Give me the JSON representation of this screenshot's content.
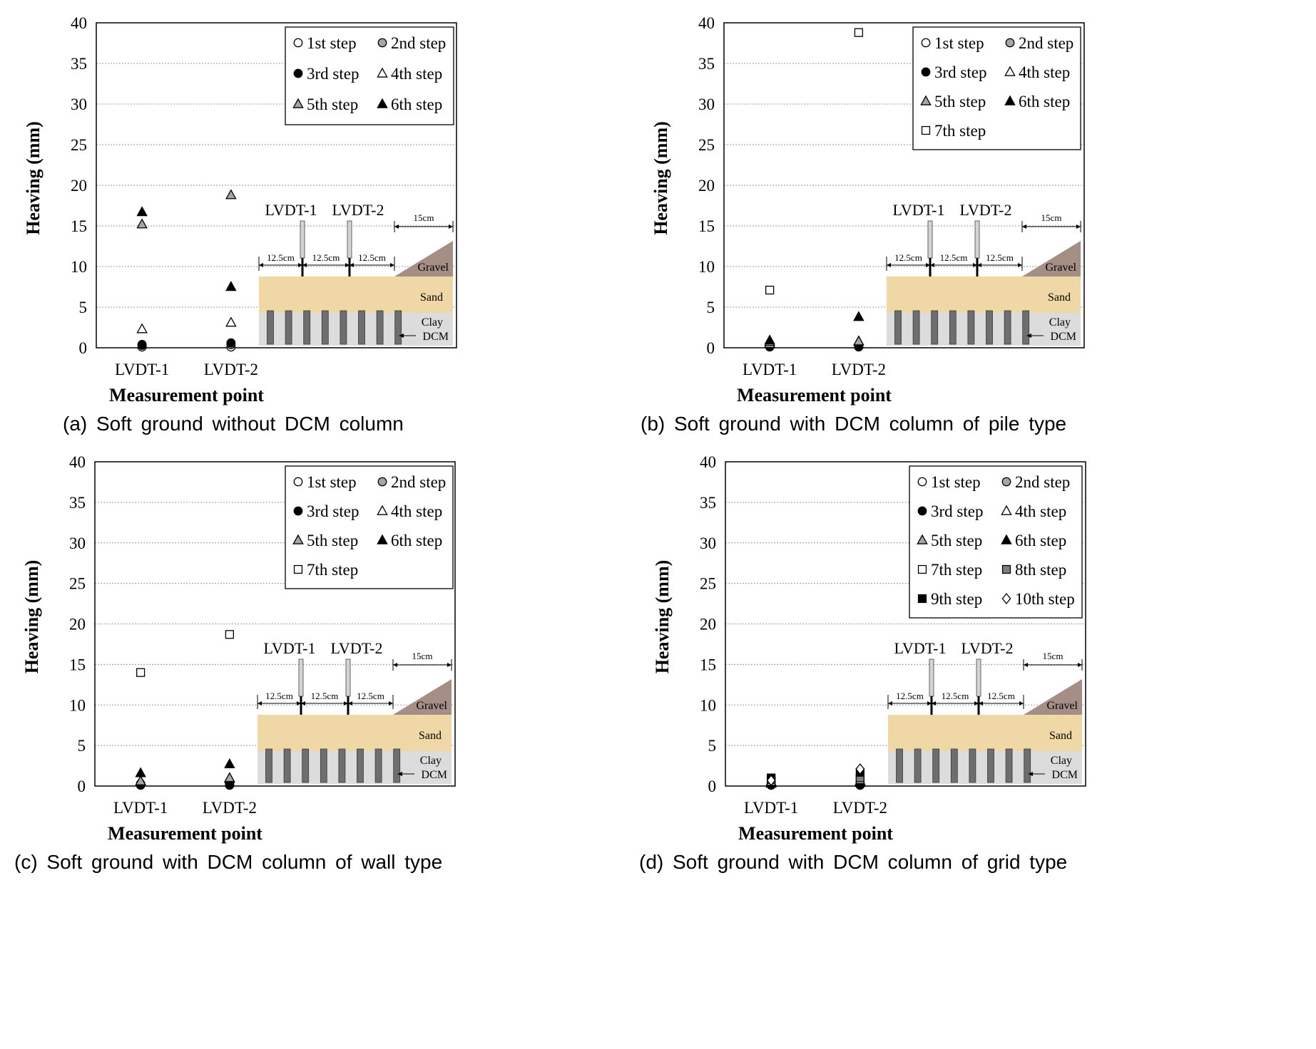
{
  "common": {
    "sand_color": "#efd8a6",
    "clay_color": "#dcdcdc",
    "gravel_color": "#a48e86",
    "column_color": "#6e6e6e",
    "schematic": {
      "lvdt1": "LVDT-1",
      "lvdt2": "LVDT-2",
      "dim_left": "12.5cm",
      "dim_mid": "12.5cm",
      "dim_right": "12.5cm",
      "dim_slope": "15cm",
      "gravel": "Gravel",
      "sand": "Sand",
      "clay": "Clay",
      "dcm": "DCM"
    }
  },
  "chart_data": [
    {
      "id": "a",
      "type": "scatter",
      "caption": "(a) Soft ground without DCM column",
      "ylabel": "Heaving (mm)",
      "xlabel": "Measurement point",
      "categories": [
        "LVDT-1",
        "LVDT-2"
      ],
      "ylim": [
        0,
        40
      ],
      "yticks": [
        0,
        5,
        10,
        15,
        20,
        25,
        30,
        35,
        40
      ],
      "grid": true,
      "legend_position": "top-right",
      "legend_cols": 2,
      "series": [
        {
          "name": "1st step",
          "marker": "circle-white",
          "values": [
            0.1,
            0.1
          ]
        },
        {
          "name": "2nd step",
          "marker": "circle-gray",
          "values": [
            0.3,
            0.4
          ]
        },
        {
          "name": "3rd step",
          "marker": "circle-black",
          "values": [
            0.4,
            0.6
          ]
        },
        {
          "name": "4th step",
          "marker": "triangle-white",
          "values": [
            2.3,
            3.1
          ]
        },
        {
          "name": "5th step",
          "marker": "triangle-gray",
          "values": [
            15.2,
            18.8
          ]
        },
        {
          "name": "6th step",
          "marker": "triangle-black",
          "values": [
            16.7,
            7.5
          ]
        }
      ]
    },
    {
      "id": "b",
      "type": "scatter",
      "caption": "(b) Soft ground with DCM column of pile type",
      "ylabel": "Heaving (mm)",
      "xlabel": "Measurement point",
      "categories": [
        "LVDT-1",
        "LVDT-2"
      ],
      "ylim": [
        0,
        40
      ],
      "yticks": [
        0,
        5,
        10,
        15,
        20,
        25,
        30,
        35,
        40
      ],
      "grid": true,
      "legend_position": "top-right",
      "legend_cols": 2,
      "series": [
        {
          "name": "1st step",
          "marker": "circle-white",
          "values": [
            0.1,
            0.1
          ]
        },
        {
          "name": "2nd step",
          "marker": "circle-gray",
          "values": [
            0.2,
            0.2
          ]
        },
        {
          "name": "3rd step",
          "marker": "circle-black",
          "values": [
            0.3,
            0.3
          ]
        },
        {
          "name": "4th step",
          "marker": "triangle-white",
          "values": [
            0.5,
            0.8
          ]
        },
        {
          "name": "5th step",
          "marker": "triangle-gray",
          "values": [
            0.7,
            0.8
          ]
        },
        {
          "name": "6th step",
          "marker": "triangle-black",
          "values": [
            0.9,
            3.8
          ]
        },
        {
          "name": "7th step",
          "marker": "square-white",
          "values": [
            7.1,
            38.8
          ]
        }
      ]
    },
    {
      "id": "c",
      "type": "scatter",
      "caption": "(c) Soft ground with DCM column of wall type",
      "ylabel": "Heaving (mm)",
      "xlabel": "Measurement point",
      "categories": [
        "LVDT-1",
        "LVDT-2"
      ],
      "ylim": [
        0,
        40
      ],
      "yticks": [
        0,
        5,
        10,
        15,
        20,
        25,
        30,
        35,
        40
      ],
      "grid": true,
      "legend_position": "top-right",
      "legend_cols": 2,
      "series": [
        {
          "name": "1st step",
          "marker": "circle-white",
          "values": [
            0.1,
            0.1
          ]
        },
        {
          "name": "2nd step",
          "marker": "circle-gray",
          "values": [
            0.2,
            0.2
          ]
        },
        {
          "name": "3rd step",
          "marker": "circle-black",
          "values": [
            0.3,
            0.3
          ]
        },
        {
          "name": "4th step",
          "marker": "triangle-white",
          "values": [
            0.6,
            0.9
          ]
        },
        {
          "name": "5th step",
          "marker": "triangle-gray",
          "values": [
            0.6,
            1.0
          ]
        },
        {
          "name": "6th step",
          "marker": "triangle-black",
          "values": [
            1.6,
            2.7
          ]
        },
        {
          "name": "7th step",
          "marker": "square-white",
          "values": [
            14.0,
            18.7
          ]
        }
      ]
    },
    {
      "id": "d",
      "type": "scatter",
      "caption": "(d) Soft ground with DCM column of grid type",
      "ylabel": "Heaving (mm)",
      "xlabel": "Measurement point",
      "categories": [
        "LVDT-1",
        "LVDT-2"
      ],
      "ylim": [
        0,
        40
      ],
      "yticks": [
        0,
        5,
        10,
        15,
        20,
        25,
        30,
        35,
        40
      ],
      "grid": true,
      "legend_position": "top-right",
      "legend_cols": 2,
      "series": [
        {
          "name": "1st step",
          "marker": "circle-white",
          "values": [
            0.1,
            0.1
          ]
        },
        {
          "name": "2nd step",
          "marker": "circle-gray",
          "values": [
            0.2,
            0.2
          ]
        },
        {
          "name": "3rd step",
          "marker": "circle-black",
          "values": [
            0.2,
            0.3
          ]
        },
        {
          "name": "4th step",
          "marker": "triangle-white",
          "values": [
            0.3,
            0.4
          ]
        },
        {
          "name": "5th step",
          "marker": "triangle-gray",
          "values": [
            0.4,
            0.5
          ]
        },
        {
          "name": "6th step",
          "marker": "triangle-black",
          "values": [
            0.5,
            0.6
          ]
        },
        {
          "name": "7th step",
          "marker": "square-white",
          "values": [
            0.6,
            0.8
          ]
        },
        {
          "name": "8th step",
          "marker": "square-gray",
          "values": [
            0.8,
            1.0
          ]
        },
        {
          "name": "9th step",
          "marker": "square-black",
          "values": [
            1.0,
            1.7
          ]
        },
        {
          "name": "10th step",
          "marker": "diamond-white",
          "values": [
            0.7,
            2.1
          ]
        }
      ]
    }
  ]
}
